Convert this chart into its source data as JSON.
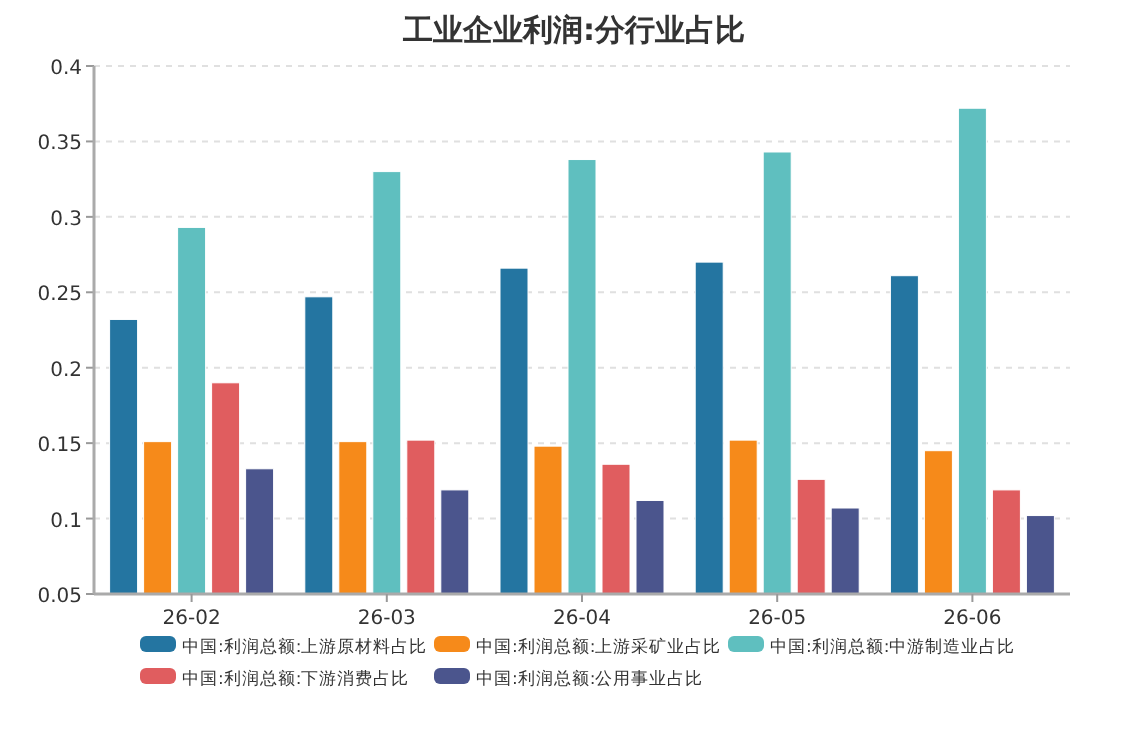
{
  "chart_data": {
    "type": "bar",
    "title": "工业企业利润:分行业占比",
    "categories": [
      "26-02",
      "26-03",
      "26-04",
      "26-05",
      "26-06"
    ],
    "series": [
      {
        "name": "中国:利润总额:上游原材料占比",
        "color": "#2475a1",
        "values": [
          0.232,
          0.247,
          0.266,
          0.27,
          0.261
        ]
      },
      {
        "name": "中国:利润总额:上游采矿业占比",
        "color": "#f68a1a",
        "values": [
          0.151,
          0.151,
          0.148,
          0.152,
          0.145
        ]
      },
      {
        "name": "中国:利润总额:中游制造业占比",
        "color": "#5fbfbf",
        "values": [
          0.293,
          0.33,
          0.338,
          0.343,
          0.372
        ]
      },
      {
        "name": "中国:利润总额:下游消费占比",
        "color": "#e05d5f",
        "values": [
          0.19,
          0.152,
          0.136,
          0.126,
          0.119
        ]
      },
      {
        "name": "中国:利润总额:公用事业占比",
        "color": "#4b558d",
        "values": [
          0.133,
          0.119,
          0.112,
          0.107,
          0.102
        ]
      }
    ],
    "ylim": [
      0.05,
      0.4
    ],
    "yticks": [
      0.05,
      0.1,
      0.15,
      0.2,
      0.25,
      0.3,
      0.35,
      0.4
    ],
    "grid": "y",
    "legend": "bottom"
  }
}
